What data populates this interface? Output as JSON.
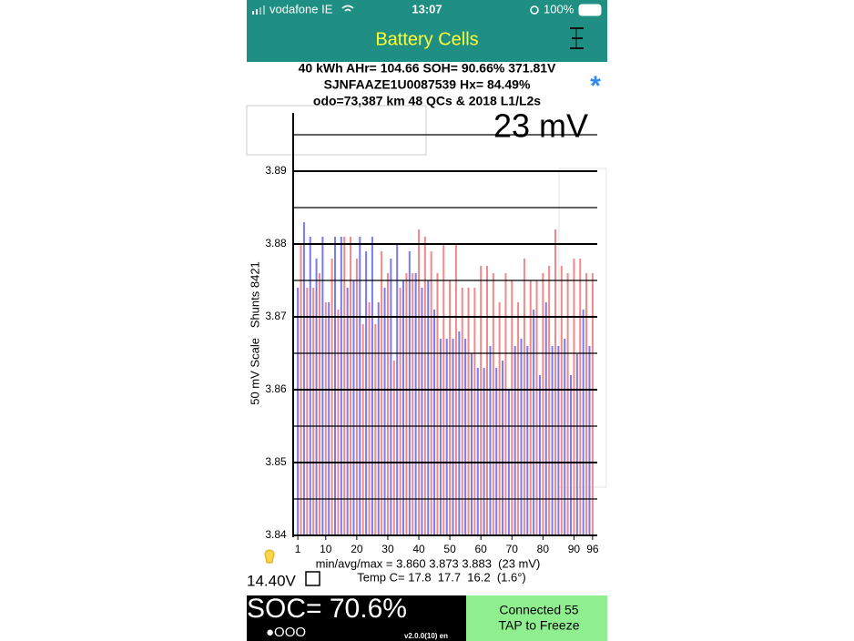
{
  "status_bar": {
    "carrier": "vodafone IE",
    "time": "13:07",
    "battery": "100%"
  },
  "header": {
    "title": "Battery Cells"
  },
  "info": {
    "line1": "40 kWh  AHr= 104.66 SOH= 90.66% 371.81V",
    "line2": "SJNFAAZE1U0087539   Hx= 84.49%",
    "line3": "odo=73,387 km 48 QCs & 2018 L1/L2s",
    "marker": "*"
  },
  "chart_data": {
    "type": "bar",
    "spread_label": "23 mV",
    "ylabel": "50 mV Scale   Shunts 8421",
    "x": [
      1,
      2,
      3,
      4,
      5,
      6,
      7,
      8,
      9,
      10,
      11,
      12,
      13,
      14,
      15,
      16,
      17,
      18,
      19,
      20,
      21,
      22,
      23,
      24,
      25,
      26,
      27,
      28,
      29,
      30,
      31,
      32,
      33,
      34,
      35,
      36,
      37,
      38,
      39,
      40,
      41,
      42,
      43,
      44,
      45,
      46,
      47,
      48,
      49,
      50,
      51,
      52,
      53,
      54,
      55,
      56,
      57,
      58,
      59,
      60,
      61,
      62,
      63,
      64,
      65,
      66,
      67,
      68,
      69,
      70,
      71,
      72,
      73,
      74,
      75,
      76,
      77,
      78,
      79,
      80,
      81,
      82,
      83,
      84,
      85,
      86,
      87,
      88,
      89,
      90,
      91,
      92,
      93,
      94,
      95,
      96
    ],
    "values": [
      3.874,
      3.88,
      3.883,
      3.874,
      3.881,
      3.874,
      3.878,
      3.876,
      3.881,
      3.872,
      3.872,
      3.878,
      3.881,
      3.871,
      3.881,
      3.881,
      3.874,
      3.881,
      3.875,
      3.878,
      3.881,
      3.869,
      3.879,
      3.872,
      3.881,
      3.869,
      3.872,
      3.879,
      3.874,
      3.876,
      3.878,
      3.864,
      3.88,
      3.874,
      3.875,
      3.876,
      3.879,
      3.876,
      3.876,
      3.882,
      3.874,
      3.881,
      3.875,
      3.879,
      3.871,
      3.876,
      3.867,
      3.88,
      3.867,
      3.875,
      3.867,
      3.88,
      3.868,
      3.874,
      3.867,
      3.874,
      3.865,
      3.874,
      3.863,
      3.877,
      3.863,
      3.877,
      3.866,
      3.876,
      3.863,
      3.872,
      3.864,
      3.876,
      3.86,
      3.875,
      3.866,
      3.872,
      3.867,
      3.878,
      3.866,
      3.875,
      3.871,
      3.875,
      3.862,
      3.876,
      3.872,
      3.877,
      3.866,
      3.882,
      3.866,
      3.877,
      3.867,
      3.876,
      3.862,
      3.878,
      3.865,
      3.878,
      3.871,
      3.876,
      3.866,
      3.876
    ],
    "bar_colors": [
      "#7b7bf0",
      "#f08a8a"
    ],
    "xlim": [
      -0.5,
      97.5
    ],
    "xticks": [
      1,
      10,
      20,
      30,
      40,
      50,
      60,
      70,
      80,
      90,
      96
    ],
    "ylim": [
      3.84,
      3.898
    ],
    "yticks": [
      3.84,
      3.85,
      3.86,
      3.87,
      3.88,
      3.89
    ],
    "minor_yticks": [
      3.845,
      3.855,
      3.865,
      3.875,
      3.885,
      3.895
    ],
    "grid": true,
    "stats": "min/avg/max = 3.860 3.873 3.883  (23 mV)",
    "temperature": "Temp C= 17.8  17.7  16.2  (1.6°)"
  },
  "aux_voltage": "14.40V",
  "footer": {
    "soc": "SOC= 70.6%",
    "pages": "●OOO",
    "version": "v2.0.0(10) en",
    "status_line1": "Connected 55",
    "status_line2": "TAP to Freeze"
  }
}
